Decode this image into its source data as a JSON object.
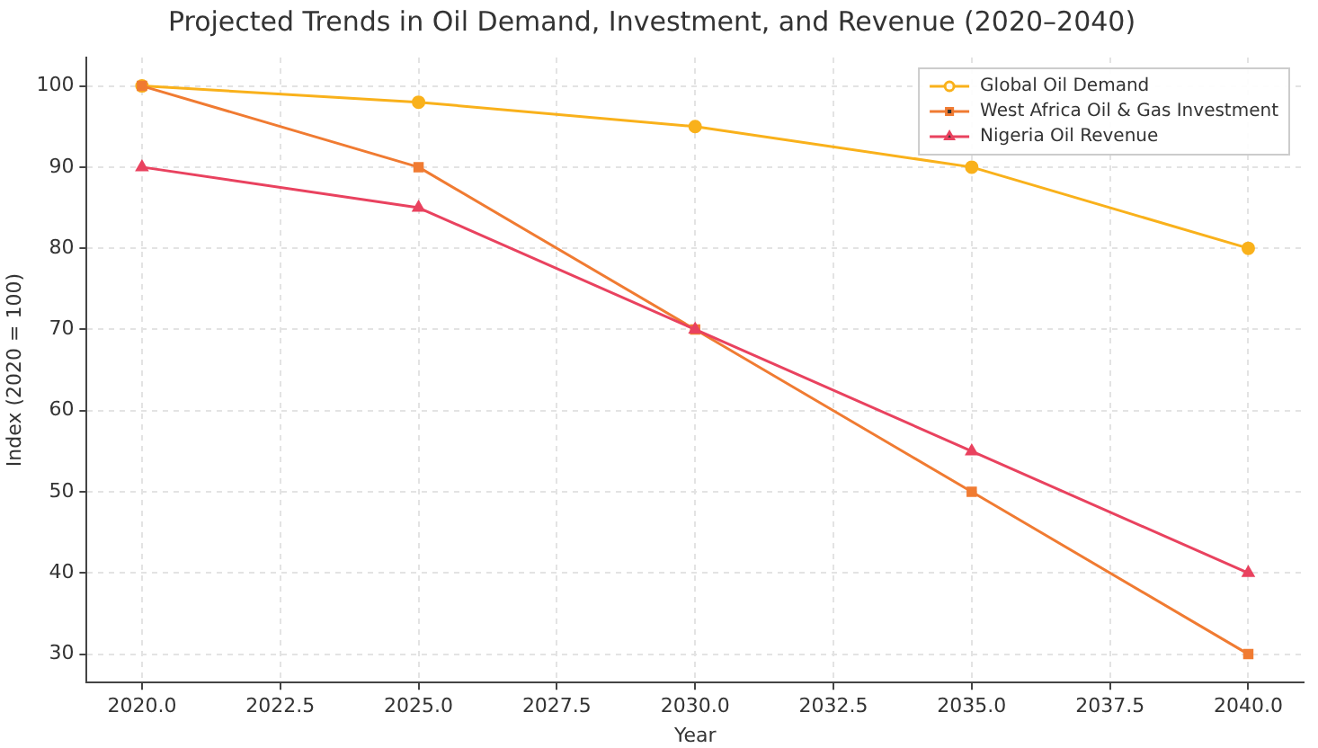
{
  "chart_data": {
    "type": "line",
    "title": "Projected Trends in Oil Demand, Investment, and Revenue (2020–2040)",
    "xlabel": "Year",
    "ylabel": "Index (2020 = 100)",
    "x": [
      2020,
      2025,
      2030,
      2035,
      2040
    ],
    "series": [
      {
        "name": "Global Oil Demand",
        "color": "#f9b11b",
        "marker": "circle",
        "values": [
          100,
          98,
          95,
          90,
          80
        ]
      },
      {
        "name": "West Africa Oil & Gas Investment",
        "color": "#f07b32",
        "marker": "square",
        "values": [
          100,
          90,
          70,
          50,
          30
        ]
      },
      {
        "name": "Nigeria Oil Revenue",
        "color": "#e9425f",
        "marker": "triangle",
        "values": [
          90,
          85,
          70,
          55,
          40
        ]
      }
    ],
    "xlim": [
      2019,
      2041
    ],
    "xticks": [
      {
        "value": 2020,
        "label": "2020.0"
      },
      {
        "value": 2022.5,
        "label": "2022.5"
      },
      {
        "value": 2025,
        "label": "2025.0"
      },
      {
        "value": 2027.5,
        "label": "2027.5"
      },
      {
        "value": 2030,
        "label": "2030.0"
      },
      {
        "value": 2032.5,
        "label": "2032.5"
      },
      {
        "value": 2035,
        "label": "2035.0"
      },
      {
        "value": 2037.5,
        "label": "2037.5"
      },
      {
        "value": 2040,
        "label": "2040.0"
      }
    ],
    "ylim": [
      26.5,
      103.5
    ],
    "yticks": [
      30,
      40,
      50,
      60,
      70,
      80,
      90,
      100
    ],
    "grid": true,
    "legend": "top right",
    "line_style": "solid"
  }
}
